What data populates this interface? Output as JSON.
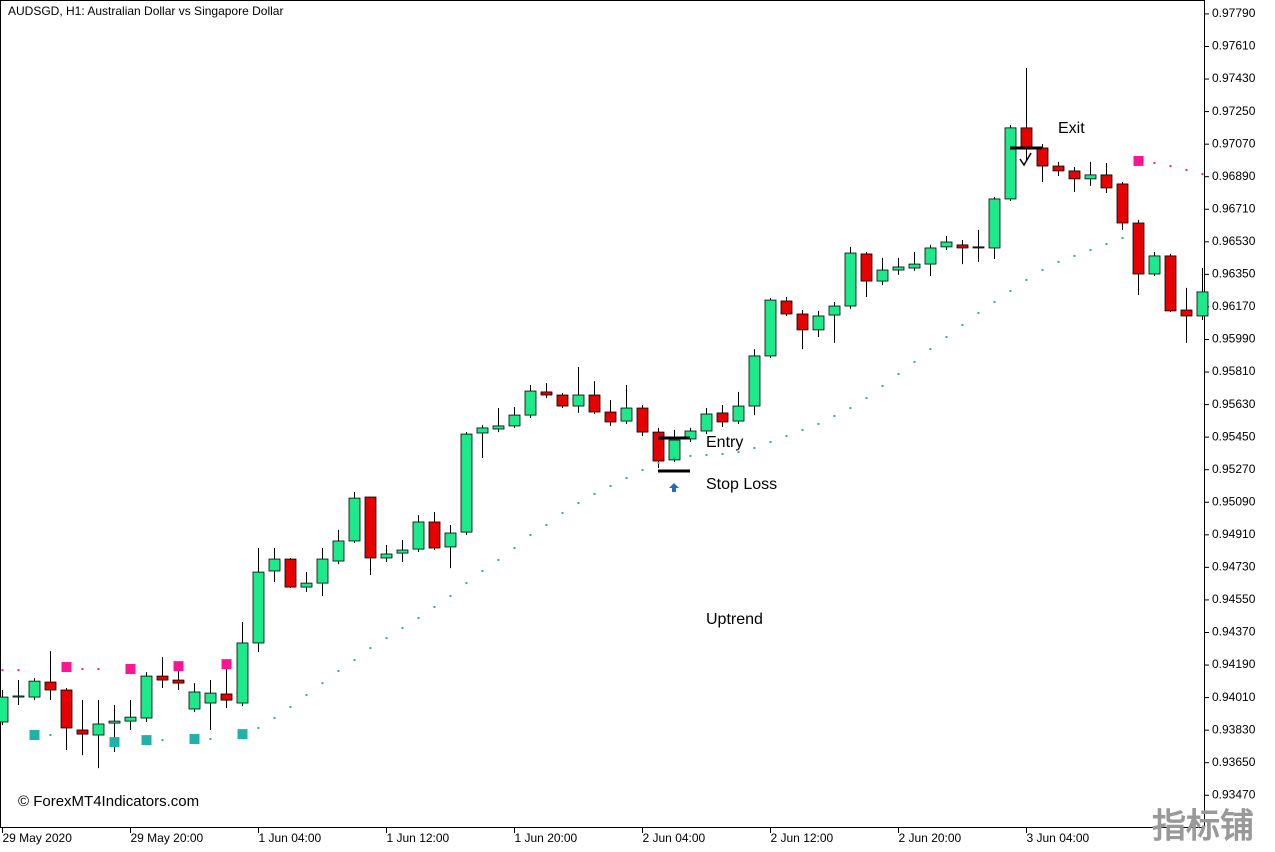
{
  "chart_data": {
    "type": "candlestick",
    "title": "AUDSGD, H1:  Australian Dollar vs Singapore Dollar",
    "categories": [
      "29 May 2020",
      null,
      null,
      null,
      null,
      null,
      null,
      null,
      "29 May 20:00",
      null,
      null,
      null,
      null,
      null,
      null,
      null,
      "1 Jun 04:00",
      null,
      null,
      null,
      null,
      null,
      null,
      null,
      "1 Jun 12:00",
      null,
      null,
      null,
      null,
      null,
      null,
      null,
      "1 Jun 20:00",
      null,
      null,
      null,
      null,
      null,
      null,
      null,
      "2 Jun 04:00",
      null,
      null,
      null,
      null,
      null,
      null,
      null,
      "2 Jun 12:00",
      null,
      null,
      null,
      null,
      null,
      null,
      null,
      "2 Jun 20:00",
      null,
      null,
      null,
      null,
      null,
      null,
      null,
      "3 Jun 04:00",
      null,
      null,
      null,
      null,
      null,
      null,
      null,
      null,
      null,
      null,
      null
    ],
    "open": [
      0.93875,
      0.94013,
      0.94013,
      0.94096,
      0.94052,
      0.93831,
      0.93803,
      0.93869,
      0.9388,
      0.93897,
      0.94129,
      0.94107,
      0.93947,
      0.9398,
      0.9403,
      0.9398,
      0.94312,
      0.9471,
      0.94776,
      0.94621,
      0.94643,
      0.94765,
      0.94876,
      0.95119,
      0.94782,
      0.94809,
      0.94831,
      0.94981,
      0.94843,
      0.94925,
      0.95473,
      0.95495,
      0.95512,
      0.95572,
      0.957,
      0.95683,
      0.95622,
      0.95683,
      0.95589,
      0.95539,
      0.95611,
      0.95478,
      0.95324,
      0.9544,
      0.95484,
      0.95584,
      0.95539,
      0.95622,
      0.95899,
      0.96203,
      0.96131,
      0.96043,
      0.96125,
      0.96175,
      0.96463,
      0.96313,
      0.96374,
      0.96385,
      0.96407,
      0.96502,
      0.96513,
      0.96502,
      0.96496,
      0.96767,
      0.9716,
      0.97049,
      0.96949,
      0.96922,
      0.96878,
      0.969,
      0.9685,
      0.96634,
      0.96352,
      0.96452,
      0.96153,
      0.9612
    ],
    "high": [
      0.94052,
      0.94107,
      0.94118,
      0.94267,
      0.94063,
      0.93996,
      0.93996,
      0.93969,
      0.93996,
      0.94151,
      0.94234,
      0.94173,
      0.9409,
      0.94107,
      0.9419,
      0.94428,
      0.94837,
      0.94837,
      0.94782,
      0.94704,
      0.94837,
      0.94937,
      0.95147,
      0.95119,
      0.94854,
      0.94881,
      0.95019,
      0.95036,
      0.94964,
      0.95478,
      0.95517,
      0.95611,
      0.95617,
      0.95738,
      0.95749,
      0.95694,
      0.95838,
      0.9576,
      0.95655,
      0.95738,
      0.95628,
      0.95501,
      0.9549,
      0.95501,
      0.95611,
      0.95628,
      0.957,
      0.95937,
      0.96219,
      0.96225,
      0.96153,
      0.96148,
      0.96197,
      0.96502,
      0.96474,
      0.96441,
      0.96441,
      0.96474,
      0.96513,
      0.96562,
      0.9654,
      0.96596,
      0.96778,
      0.97176,
      0.97491,
      0.97071,
      0.96972,
      0.96944,
      0.96972,
      0.96966,
      0.96861,
      0.96651,
      0.96474,
      0.96463,
      0.96275,
      0.96385
    ],
    "low": [
      0.93858,
      0.93969,
      0.93996,
      0.93996,
      0.9372,
      0.93692,
      0.9362,
      0.93709,
      0.93831,
      0.93875,
      0.94063,
      0.94052,
      0.9393,
      0.93831,
      0.93952,
      0.93963,
      0.94262,
      0.94649,
      0.94616,
      0.94594,
      0.94572,
      0.94748,
      0.94865,
      0.94688,
      0.9476,
      0.9476,
      0.94815,
      0.94826,
      0.94726,
      0.94909,
      0.95335,
      0.95478,
      0.95501,
      0.95556,
      0.95666,
      0.95611,
      0.95584,
      0.95578,
      0.95512,
      0.95523,
      0.95456,
      0.95279,
      0.95313,
      0.95423,
      0.95467,
      0.95506,
      0.95523,
      0.95572,
      0.95888,
      0.9612,
      0.95937,
      0.96004,
      0.95971,
      0.96159,
      0.96225,
      0.96291,
      0.96347,
      0.96369,
      0.96341,
      0.96485,
      0.96407,
      0.96419,
      0.96435,
      0.96756,
      0.96983,
      0.96861,
      0.96894,
      0.96806,
      0.96839,
      0.968,
      0.96596,
      0.96236,
      0.96341,
      0.96142,
      0.95971,
      0.96098
    ],
    "close": [
      0.94013,
      0.94019,
      0.94101,
      0.94052,
      0.93842,
      0.93808,
      0.93864,
      0.9388,
      0.93902,
      0.94129,
      0.94107,
      0.9409,
      0.94041,
      0.94035,
      0.93996,
      0.94312,
      0.94704,
      0.94776,
      0.94621,
      0.94643,
      0.94776,
      0.94876,
      0.95113,
      0.94782,
      0.94804,
      0.94826,
      0.94981,
      0.94837,
      0.9492,
      0.95467,
      0.95501,
      0.95512,
      0.95572,
      0.95705,
      0.95683,
      0.95622,
      0.95683,
      0.95589,
      0.95534,
      0.95611,
      0.95478,
      0.95318,
      0.95434,
      0.95484,
      0.95578,
      0.95534,
      0.95622,
      0.95899,
      0.96208,
      0.96131,
      0.96043,
      0.9612,
      0.96175,
      0.96468,
      0.96313,
      0.96374,
      0.96391,
      0.96407,
      0.96496,
      0.96529,
      0.96496,
      0.96496,
      0.96767,
      0.9716,
      0.97049,
      0.96949,
      0.96922,
      0.96878,
      0.969,
      0.96828,
      0.96634,
      0.96352,
      0.96452,
      0.96148,
      0.9612,
      0.96253
    ],
    "up_color": "#1de98b",
    "down_color": "#e60000",
    "indicator": {
      "up": [
        null,
        null,
        0.93803,
        0.93803,
        null,
        null,
        null,
        0.93764,
        null,
        0.93775,
        0.93775,
        null,
        0.93781,
        0.93781,
        null,
        0.93808,
        0.93842,
        0.93897,
        0.93958,
        0.94024,
        0.9409,
        0.94157,
        0.94218,
        0.94284,
        0.94339,
        0.94395,
        0.9445,
        0.94511,
        0.94572,
        0.94643,
        0.9471,
        0.94771,
        0.94837,
        0.94909,
        0.94964,
        0.95031,
        0.95086,
        0.95136,
        0.9518,
        0.95224,
        0.95268,
        0.95307,
        0.95335,
        0.95346,
        0.95351,
        0.95357,
        0.95368,
        0.9539,
        0.95423,
        0.95456,
        0.9549,
        0.95523,
        0.95567,
        0.95611,
        0.95666,
        0.95733,
        0.95799,
        0.95866,
        0.95937,
        0.96004,
        0.9607,
        0.96137,
        0.96197,
        0.96258,
        0.96319,
        0.96374,
        0.96419,
        0.96452,
        0.96485,
        0.96518,
        0.96551,
        null,
        null,
        null,
        null,
        null
      ],
      "down": [
        0.94162,
        0.94162,
        null,
        null,
        0.94179,
        0.94168,
        0.94168,
        null,
        0.94168,
        null,
        null,
        0.94184,
        null,
        null,
        0.94195,
        null,
        null,
        null,
        null,
        null,
        null,
        null,
        null,
        null,
        null,
        null,
        null,
        null,
        null,
        null,
        null,
        null,
        null,
        null,
        null,
        null,
        null,
        null,
        null,
        null,
        null,
        null,
        null,
        null,
        null,
        null,
        null,
        null,
        null,
        null,
        null,
        null,
        null,
        null,
        null,
        null,
        null,
        null,
        null,
        null,
        null,
        null,
        null,
        null,
        null,
        null,
        null,
        null,
        null,
        null,
        null,
        0.96977,
        0.96966,
        0.96949,
        0.96927,
        0.96905
      ],
      "up_color": "#20b2aa",
      "down_color": "#ff1493"
    },
    "annotations": [
      {
        "text": "Entry",
        "value": 0.95445
      },
      {
        "text": "Stop Loss",
        "value": 0.95263
      },
      {
        "text": "Exit",
        "value": 0.97049
      },
      {
        "text": "Uptrend"
      }
    ],
    "copyright": "© ForexMT4Indicators.com",
    "watermark": "指标铺",
    "ylim": [
      0.93289,
      0.97867
    ],
    "yticks": [
      {
        "value": 0.9779,
        "label": "0.97790"
      },
      {
        "value": 0.9761,
        "label": "0.97610"
      },
      {
        "value": 0.9743,
        "label": "0.97430"
      },
      {
        "value": 0.9725,
        "label": "0.97250"
      },
      {
        "value": 0.9707,
        "label": "0.97070"
      },
      {
        "value": 0.9689,
        "label": "0.96890"
      },
      {
        "value": 0.9671,
        "label": "0.96710"
      },
      {
        "value": 0.9653,
        "label": "0.96530"
      },
      {
        "value": 0.9635,
        "label": "0.96350"
      },
      {
        "value": 0.9617,
        "label": "0.96170"
      },
      {
        "value": 0.9599,
        "label": "0.95990"
      },
      {
        "value": 0.9581,
        "label": "0.95810"
      },
      {
        "value": 0.9563,
        "label": "0.95630"
      },
      {
        "value": 0.9545,
        "label": "0.95450"
      },
      {
        "value": 0.9527,
        "label": "0.95270"
      },
      {
        "value": 0.9509,
        "label": "0.95090"
      },
      {
        "value": 0.9491,
        "label": "0.94910"
      },
      {
        "value": 0.9473,
        "label": "0.94730"
      },
      {
        "value": 0.9455,
        "label": "0.94550"
      },
      {
        "value": 0.9437,
        "label": "0.94370"
      },
      {
        "value": 0.9419,
        "label": "0.94190"
      },
      {
        "value": 0.9401,
        "label": "0.94010"
      },
      {
        "value": 0.9383,
        "label": "0.93830"
      },
      {
        "value": 0.9365,
        "label": "0.93650"
      },
      {
        "value": 0.9347,
        "label": "0.93470"
      }
    ],
    "grid": false
  }
}
